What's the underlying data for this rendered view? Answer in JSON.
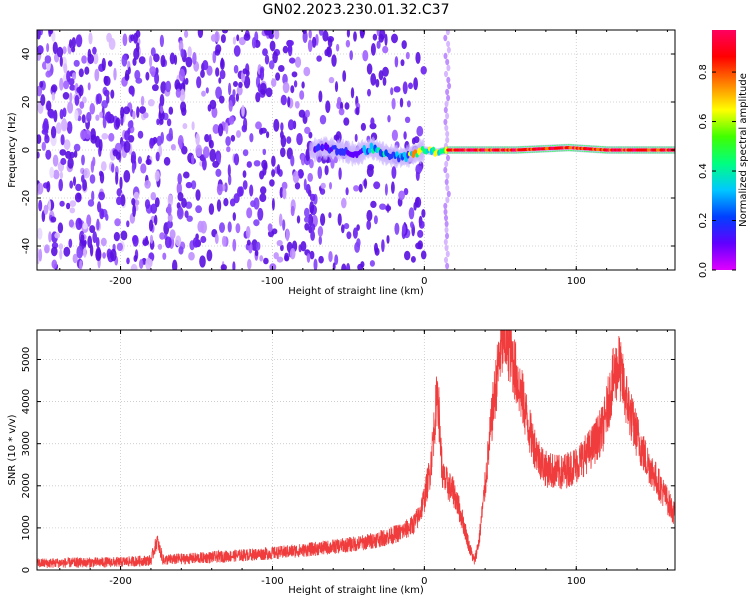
{
  "title": "GN02.2023.230.01.32.C37",
  "chart_data": [
    {
      "type": "heatmap",
      "name": "spectrogram",
      "xlabel": "Height of straight line (km)",
      "ylabel": "Frequency (Hz)",
      "xlim": [
        -255,
        165
      ],
      "ylim": [
        -50,
        50
      ],
      "xticks": [
        -200,
        -100,
        0,
        100
      ],
      "yticks": [
        -40,
        -20,
        0,
        20,
        40
      ],
      "grid": true,
      "colorbar": {
        "label": "Normalized spectral amplitude",
        "range": [
          0.0,
          0.97
        ],
        "ticks": [
          "0.0",
          "0.2",
          "0.4",
          "0.6",
          "0.8"
        ],
        "colormap": [
          "#e000ff",
          "#6000ff",
          "#0040ff",
          "#00c8ff",
          "#00ff80",
          "#40ff00",
          "#ffff00",
          "#ff8000",
          "#ff0000",
          "#ff0060"
        ]
      },
      "noise_region_km": [
        -255,
        -20
      ],
      "vertical_band_km": 15,
      "ridge_path": [
        [
          -70,
          1
        ],
        [
          -55,
          0
        ],
        [
          -45,
          -2
        ],
        [
          -35,
          1
        ],
        [
          -25,
          -2
        ],
        [
          -15,
          -3
        ],
        [
          -8,
          -2
        ],
        [
          0,
          0
        ],
        [
          8,
          -1
        ],
        [
          15,
          0
        ],
        [
          30,
          0
        ],
        [
          60,
          0
        ],
        [
          95,
          1
        ],
        [
          120,
          0
        ],
        [
          165,
          0
        ]
      ]
    },
    {
      "type": "line",
      "name": "snr",
      "xlabel": "Height of straight line (km)",
      "ylabel": "SNR (10 * v/v)",
      "xlim": [
        -255,
        165
      ],
      "ylim": [
        0,
        5700
      ],
      "xticks": [
        -200,
        -100,
        0,
        100
      ],
      "yticks": [
        0,
        1000,
        2000,
        3000,
        4000,
        5000
      ],
      "grid": true,
      "color": "#f03c3c",
      "series": [
        {
          "name": "SNR",
          "x": [
            -255,
            -200,
            -180,
            -176,
            -172,
            -150,
            -120,
            -100,
            -80,
            -60,
            -40,
            -25,
            -15,
            -8,
            -4,
            0,
            4,
            8,
            9,
            10,
            12,
            16,
            20,
            25,
            30,
            33,
            36,
            40,
            45,
            50,
            53,
            56,
            60,
            65,
            70,
            75,
            80,
            90,
            100,
            110,
            118,
            124,
            128,
            132,
            138,
            145,
            155,
            165
          ],
          "y": [
            160,
            190,
            230,
            700,
            240,
            280,
            350,
            400,
            470,
            550,
            650,
            780,
            900,
            1050,
            1250,
            1700,
            2400,
            4000,
            4300,
            3400,
            2200,
            2000,
            1800,
            1200,
            500,
            200,
            700,
            2000,
            3800,
            5200,
            5500,
            5300,
            4700,
            4000,
            3200,
            2700,
            2400,
            2300,
            2500,
            2900,
            3400,
            4500,
            4900,
            4200,
            3400,
            2700,
            2000,
            1300
          ]
        }
      ]
    }
  ]
}
